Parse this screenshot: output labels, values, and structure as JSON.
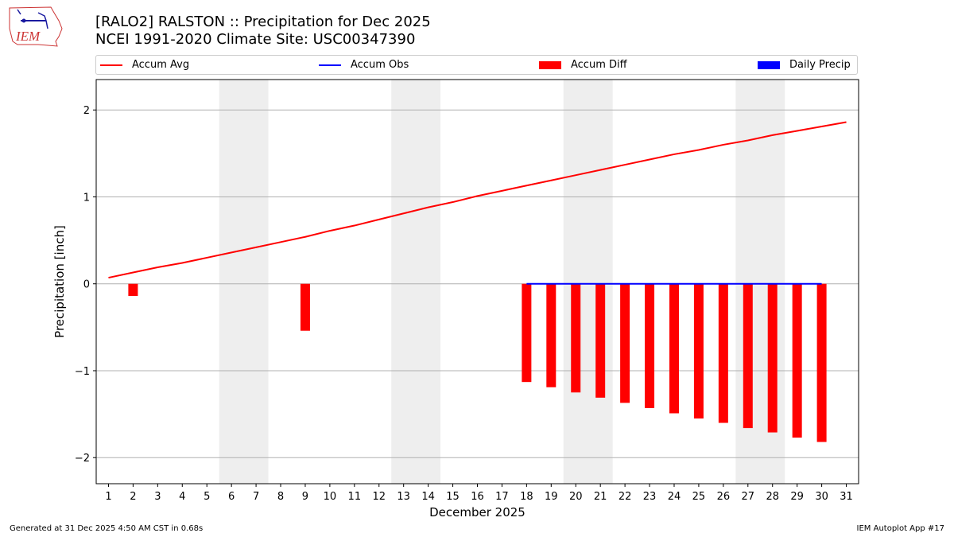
{
  "header": {
    "title_line1": "[RALO2] RALSTON :: Precipitation for Dec 2025",
    "title_line2": "NCEI 1991-2020 Climate Site: USC00347390",
    "logo_text": "IEM"
  },
  "footer": {
    "generated": "Generated at 31 Dec 2025 4:50 AM CST in 0.68s",
    "app": "IEM Autoplot App #17"
  },
  "colors": {
    "avg": "#ff0000",
    "obs": "#0000ff",
    "diff": "#ff0000",
    "daily": "#0000ff",
    "weekend": "#eeeeee",
    "grid": "#b0b0b0"
  },
  "chart_data": {
    "type": "bar",
    "title": "[RALO2] RALSTON :: Precipitation for Dec 2025",
    "subtitle": "NCEI 1991-2020 Climate Site: USC00347390",
    "xlabel": "December 2025",
    "ylabel": "Precipitation [inch]",
    "xlim": [
      0.5,
      31.5
    ],
    "ylim": [
      -2.3,
      2.35
    ],
    "yticks": [
      -2,
      -1,
      0,
      1,
      2
    ],
    "ytick_labels": [
      "−2",
      "−1",
      "0",
      "1",
      "2"
    ],
    "xticks": [
      1,
      2,
      3,
      4,
      5,
      6,
      7,
      8,
      9,
      10,
      11,
      12,
      13,
      14,
      15,
      16,
      17,
      18,
      19,
      20,
      21,
      22,
      23,
      24,
      25,
      26,
      27,
      28,
      29,
      30,
      31
    ],
    "grid": "y",
    "legend_position": "top",
    "legend": [
      {
        "label": "Accum Avg",
        "kind": "line",
        "color": "#ff0000"
      },
      {
        "label": "Accum Obs",
        "kind": "line",
        "color": "#0000ff"
      },
      {
        "label": "Accum Diff",
        "kind": "patch",
        "color": "#ff0000"
      },
      {
        "label": "Daily Precip",
        "kind": "patch",
        "color": "#0000ff"
      }
    ],
    "weekend_spans": [
      [
        5.5,
        7.5
      ],
      [
        12.5,
        14.5
      ],
      [
        19.5,
        21.5
      ],
      [
        26.5,
        28.5
      ]
    ],
    "series": [
      {
        "name": "Accum Avg",
        "type": "line",
        "x": [
          1,
          2,
          3,
          4,
          5,
          6,
          7,
          8,
          9,
          10,
          11,
          12,
          13,
          14,
          15,
          16,
          17,
          18,
          19,
          20,
          21,
          22,
          23,
          24,
          25,
          26,
          27,
          28,
          29,
          30,
          31
        ],
        "values": [
          0.07,
          0.13,
          0.19,
          0.24,
          0.3,
          0.36,
          0.42,
          0.48,
          0.54,
          0.61,
          0.67,
          0.74,
          0.81,
          0.88,
          0.94,
          1.01,
          1.07,
          1.13,
          1.19,
          1.25,
          1.31,
          1.37,
          1.43,
          1.49,
          1.54,
          1.6,
          1.65,
          1.71,
          1.76,
          1.81,
          1.86
        ]
      },
      {
        "name": "Accum Obs",
        "type": "line",
        "x": [
          18,
          19,
          20,
          21,
          22,
          23,
          24,
          25,
          26,
          27,
          28,
          29,
          30
        ],
        "values": [
          0,
          0,
          0,
          0,
          0,
          0,
          0,
          0,
          0,
          0,
          0,
          0,
          0
        ]
      },
      {
        "name": "Accum Diff",
        "type": "bar",
        "x": [
          2,
          9,
          18,
          19,
          20,
          21,
          22,
          23,
          24,
          25,
          26,
          27,
          28,
          29,
          30
        ],
        "values": [
          -0.14,
          -0.54,
          -1.13,
          -1.19,
          -1.25,
          -1.31,
          -1.37,
          -1.43,
          -1.49,
          -1.55,
          -1.6,
          -1.66,
          -1.71,
          -1.77,
          -1.82
        ]
      },
      {
        "name": "Daily Precip",
        "type": "bar",
        "x": [],
        "values": []
      }
    ]
  }
}
